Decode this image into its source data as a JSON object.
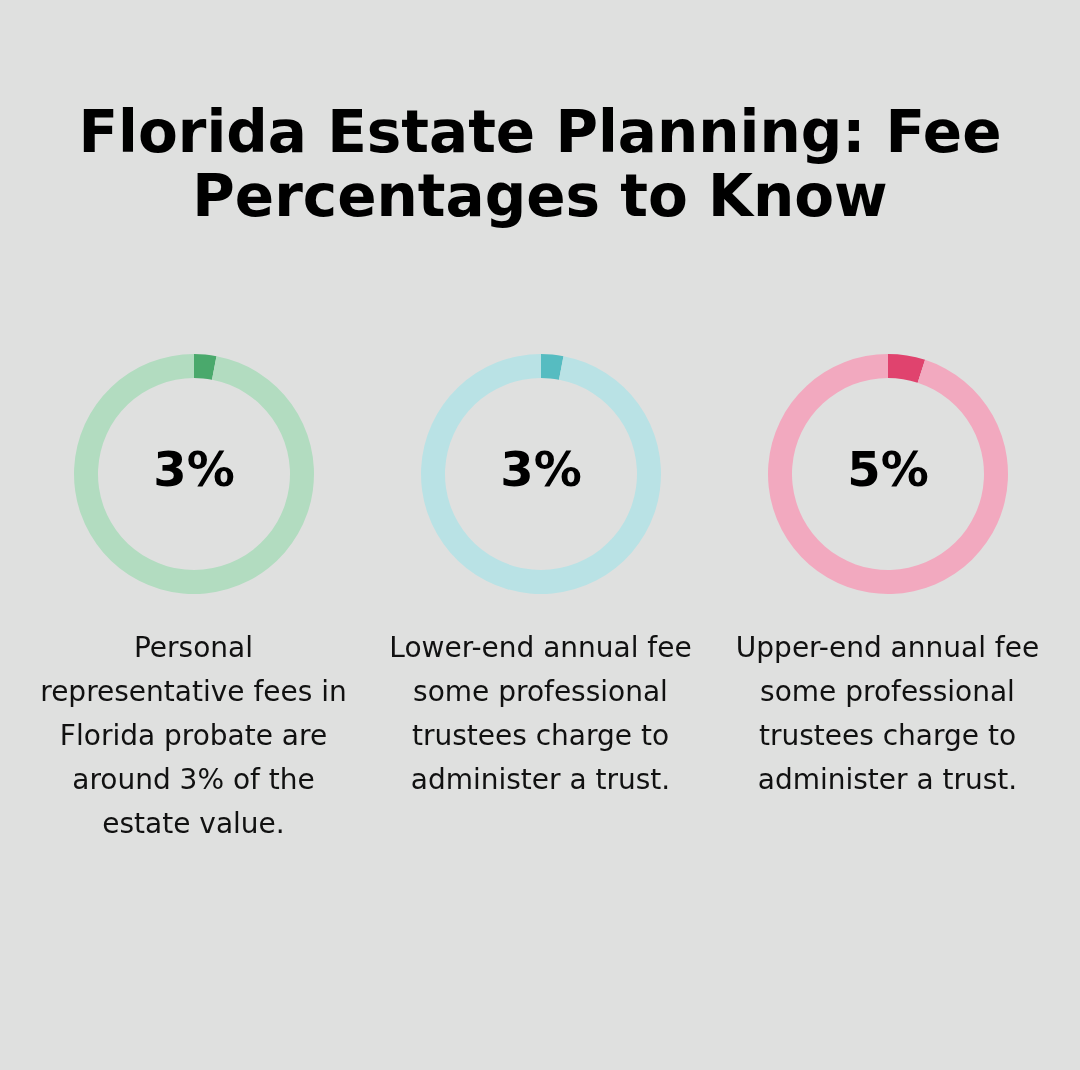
{
  "chart_data": [
    {
      "type": "donut",
      "title": "Florida Estate Planning: Fee Percentages to Know",
      "categories": [
        null,
        null
      ],
      "values": [
        3,
        97
      ],
      "colors": [
        "#4aa96c",
        "#b2dcc0"
      ],
      "value_labels": [
        "3%",
        null
      ],
      "annotations": [
        "Personal representative fees in Florida probate are around 3% of the estate value."
      ]
    },
    {
      "type": "donut",
      "categories": [
        null,
        null
      ],
      "values": [
        3,
        97
      ],
      "colors": [
        "#56bcc1",
        "#b9e2e5"
      ],
      "value_labels": [
        "3%",
        null
      ],
      "annotations": [
        "Lower-end annual fee some professional trustees charge to administer a trust."
      ]
    },
    {
      "type": "donut",
      "categories": [
        null,
        null
      ],
      "values": [
        5,
        95
      ],
      "colors": [
        "#e0436e",
        "#f2a9bf"
      ],
      "value_labels": [
        "5%",
        null
      ],
      "annotations": [
        "Upper-end annual fee some professional trustees charge to administer a trust."
      ]
    }
  ]
}
